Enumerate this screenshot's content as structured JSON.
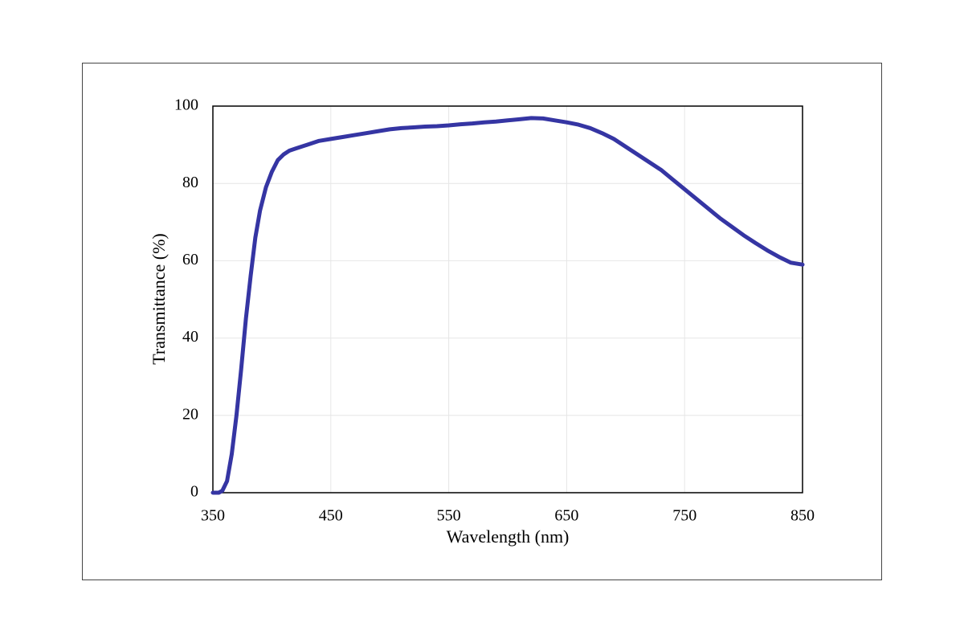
{
  "chart_data": {
    "type": "line",
    "x_label": "Wavelength (nm)",
    "y_label": "Transmittance (%)",
    "x": [
      350,
      355,
      358,
      362,
      366,
      370,
      374,
      378,
      382,
      386,
      390,
      395,
      400,
      405,
      410,
      415,
      420,
      430,
      440,
      450,
      460,
      470,
      480,
      490,
      500,
      510,
      520,
      530,
      540,
      550,
      560,
      570,
      580,
      590,
      600,
      610,
      620,
      630,
      640,
      650,
      660,
      670,
      680,
      690,
      700,
      710,
      720,
      730,
      740,
      750,
      760,
      770,
      780,
      790,
      800,
      810,
      820,
      830,
      840,
      850
    ],
    "series": [
      {
        "color": "#3535a3",
        "values": [
          0,
          0,
          0.5,
          3,
          10,
          20,
          32,
          45,
          56,
          66,
          73,
          79,
          83,
          86,
          87.5,
          88.5,
          89,
          90,
          91,
          91.5,
          92,
          92.5,
          93,
          93.5,
          94,
          94.3,
          94.5,
          94.7,
          94.8,
          95,
          95.3,
          95.5,
          95.8,
          96,
          96.3,
          96.6,
          96.9,
          96.8,
          96.3,
          95.8,
          95.2,
          94.3,
          93,
          91.5,
          89.5,
          87.5,
          85.5,
          83.5,
          81,
          78.5,
          76,
          73.5,
          71,
          68.8,
          66.6,
          64.6,
          62.7,
          61,
          59.5,
          59
        ]
      }
    ],
    "xlim": [
      350,
      850
    ],
    "xticks": [
      350,
      450,
      550,
      650,
      750,
      850
    ],
    "ylim": [
      0,
      100
    ],
    "yticks": [
      0,
      20,
      40,
      60,
      80,
      100
    ],
    "grid": true
  }
}
